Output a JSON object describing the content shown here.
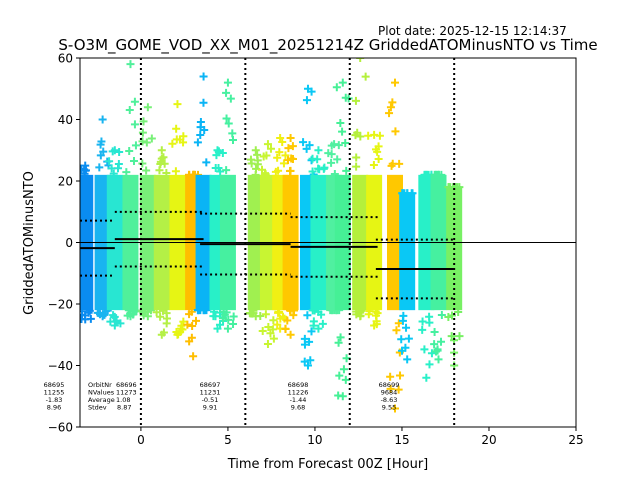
{
  "chart_data": {
    "type": "scatter",
    "plot_date": "Plot date: 2025-12-15 12:14:37",
    "title": "S-O3M_GOME_VOD_XX_M01_20251214Z GriddedATOMinusNTO vs Time",
    "xlabel": "Time from Forecast 00Z [Hour]",
    "ylabel": "GriddedATOMinusNTO",
    "xlim": [
      -3.5,
      25
    ],
    "ylim": [
      -60,
      60
    ],
    "xticks": [
      0,
      5,
      10,
      15,
      20,
      25
    ],
    "yticks": [
      -60,
      -40,
      -20,
      0,
      20,
      40,
      60
    ],
    "xtick_labels": [
      "0",
      "5",
      "10",
      "15",
      "20",
      "25"
    ],
    "ytick_labels": [
      "−60",
      "−40",
      "−20",
      "0",
      "20",
      "40",
      "60"
    ],
    "zero_line": 0,
    "vertical_dotted_lines": [
      0,
      6,
      12,
      18
    ],
    "grid": false,
    "strips": [
      {
        "x": -3.2,
        "low": -25,
        "high": 25,
        "color": "#0a8cf0"
      },
      {
        "x": -2.2,
        "low": -24,
        "high": 40,
        "color": "#19b4f0"
      },
      {
        "x": -1.5,
        "low": -27,
        "high": 30,
        "color": "#28e6d2"
      },
      {
        "x": -0.6,
        "low": -24,
        "high": 58,
        "color": "#50f09b"
      },
      {
        "x": 0.4,
        "low": -24,
        "high": 44,
        "color": "#78f078"
      },
      {
        "x": 1.2,
        "low": -30,
        "high": 30,
        "color": "#b4f046"
      },
      {
        "x": 2.1,
        "low": -30,
        "high": 45,
        "color": "#e6f514"
      },
      {
        "x": 3.0,
        "low": -37,
        "high": 22,
        "color": "#ffbe00"
      },
      {
        "x": 3.6,
        "low": -22,
        "high": 54,
        "color": "#0ab4f5"
      },
      {
        "x": 4.4,
        "low": -28,
        "high": 30,
        "color": "#28f0c8"
      },
      {
        "x": 5.0,
        "low": -28,
        "high": 52,
        "color": "#46f0a0"
      },
      {
        "x": 6.6,
        "low": -24,
        "high": 30,
        "color": "#a0f050"
      },
      {
        "x": 7.3,
        "low": -33,
        "high": 32,
        "color": "#c8f532"
      },
      {
        "x": 8.0,
        "low": -28,
        "high": 34,
        "color": "#f0f014"
      },
      {
        "x": 8.6,
        "low": -30,
        "high": 34,
        "color": "#ffc800"
      },
      {
        "x": 9.6,
        "low": -40,
        "high": 50,
        "color": "#0ac8f5"
      },
      {
        "x": 10.2,
        "low": -28,
        "high": 30,
        "color": "#28f0c8"
      },
      {
        "x": 11.1,
        "low": -22,
        "high": 32,
        "color": "#50f0a0"
      },
      {
        "x": 11.6,
        "low": -50,
        "high": 52,
        "color": "#46f096"
      },
      {
        "x": 12.6,
        "low": -24,
        "high": 60,
        "color": "#b4f03c"
      },
      {
        "x": 13.4,
        "low": -27,
        "high": 35,
        "color": "#e6f514"
      },
      {
        "x": 14.6,
        "low": -54,
        "high": 52,
        "color": "#ffc800"
      },
      {
        "x": 15.3,
        "low": -38,
        "high": 16,
        "color": "#0ac8f5"
      },
      {
        "x": 16.4,
        "low": -44,
        "high": 22,
        "color": "#28f0c8"
      },
      {
        "x": 17.1,
        "low": -38,
        "high": 22,
        "color": "#46f0a0"
      },
      {
        "x": 18.0,
        "low": -40,
        "high": 18,
        "color": "#78f064"
      }
    ],
    "orbits": [
      {
        "orbit": "68695",
        "nvalues": "11255",
        "average": "-1.83",
        "stdev": "8.96",
        "x_start": -3.5,
        "x_end": -1.5,
        "mean": -1.83,
        "upper": 7.13,
        "lower": -10.79
      },
      {
        "orbit": "68696",
        "nvalues": "11273",
        "average": "1.08",
        "stdev": "8.87",
        "x_start": -1.5,
        "x_end": 3.6,
        "mean": 1.08,
        "upper": 9.95,
        "lower": -7.79
      },
      {
        "orbit": "68697",
        "nvalues": "11231",
        "average": "-0.51",
        "stdev": "9.91",
        "x_start": 3.4,
        "x_end": 8.6,
        "mean": -0.51,
        "upper": 9.4,
        "lower": -10.42
      },
      {
        "orbit": "68698",
        "nvalues": "11226",
        "average": "-1.44",
        "stdev": "9.68",
        "x_start": 8.6,
        "x_end": 13.6,
        "mean": -1.44,
        "upper": 8.24,
        "lower": -11.12
      },
      {
        "orbit": "68699",
        "nvalues": "9684",
        "average": "-8.63",
        "stdev": "9.55",
        "x_start": 13.5,
        "x_end": 18.0,
        "mean": -8.63,
        "upper": 0.92,
        "lower": -18.18
      }
    ],
    "stat_labels": {
      "orbit": "OrbitNr",
      "nvalues": "NValues",
      "average": "Average",
      "stdev": "Stdev"
    },
    "colors": {
      "axis": "#000000",
      "background": "#ffffff"
    }
  }
}
